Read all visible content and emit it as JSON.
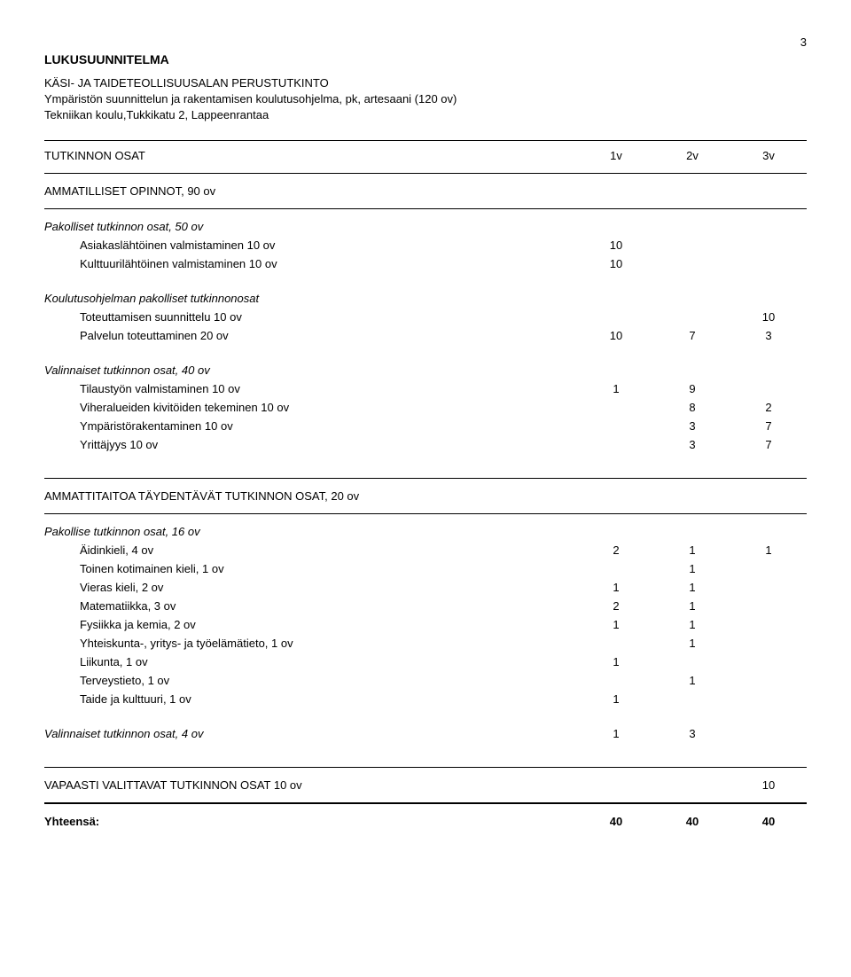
{
  "page_number": "3",
  "title": "LUKUSUUNNITELMA",
  "subtitle_lines": [
    "KÄSI- JA TAIDETEOLLISUUSALAN PERUSTUTKINTO",
    "Ympäristön suunnittelun ja rakentamisen koulutusohjelma, pk, artesaani (120 ov)",
    "Tekniikan koulu,Tukkikatu 2, Lappeenrantaa"
  ],
  "columns_header": {
    "label": "TUTKINNON OSAT",
    "c1": "1v",
    "c2": "2v",
    "c3": "3v"
  },
  "s1": {
    "title": "AMMATILLISET OPINNOT, 90 ov",
    "g1": {
      "title": "Pakolliset tutkinnon osat, 50 ov",
      "r1": {
        "label": "Asiakaslähtöinen valmistaminen 10 ov",
        "c1": "10"
      },
      "r2": {
        "label": "Kulttuurilähtöinen valmistaminen 10 ov",
        "c1": "10"
      }
    },
    "g2": {
      "title": "Koulutusohjelman pakolliset tutkinnonosat",
      "r1": {
        "label": "Toteuttamisen suunnittelu 10 ov",
        "c3": "10"
      },
      "r2": {
        "label": "Palvelun toteuttaminen 20 ov",
        "c1": "10",
        "c2": "7",
        "c3": "3"
      }
    },
    "g3": {
      "title": "Valinnaiset tutkinnon osat, 40 ov",
      "r1": {
        "label": "Tilaustyön valmistaminen 10 ov",
        "c1": "1",
        "c2": "9"
      },
      "r2": {
        "label": "Viheralueiden kivitöiden tekeminen 10 ov",
        "c2": "8",
        "c3": "2"
      },
      "r3": {
        "label": "Ympäristörakentaminen 10 ov",
        "c2": "3",
        "c3": "7"
      },
      "r4": {
        "label": "Yrittäjyys 10 ov",
        "c2": "3",
        "c3": "7"
      }
    }
  },
  "s2": {
    "title": "AMMATTITAITOA TÄYDENTÄVÄT TUTKINNON OSAT, 20 ov",
    "g1": {
      "title": "Pakollise tutkinnon osat, 16 ov",
      "r1": {
        "label": "Äidinkieli, 4 ov",
        "c1": "2",
        "c2": "1",
        "c3": "1"
      },
      "r2": {
        "label": "Toinen kotimainen kieli, 1 ov",
        "c2": "1"
      },
      "r3": {
        "label": "Vieras kieli, 2 ov",
        "c1": "1",
        "c2": "1"
      },
      "r4": {
        "label": "Matematiikka, 3 ov",
        "c1": "2",
        "c2": "1"
      },
      "r5": {
        "label": "Fysiikka ja kemia, 2 ov",
        "c1": "1",
        "c2": "1"
      },
      "r6": {
        "label": "Yhteiskunta-, yritys- ja työelämätieto, 1 ov",
        "c2": "1"
      },
      "r7": {
        "label": "Liikunta, 1 ov",
        "c1": "1"
      },
      "r8": {
        "label": "Terveystieto, 1 ov",
        "c2": "1"
      },
      "r9": {
        "label": "Taide ja kulttuuri, 1 ov",
        "c1": "1"
      }
    },
    "g2": {
      "title": "Valinnaiset tutkinnon osat,  4 ov",
      "c1": "1",
      "c2": "3"
    }
  },
  "s3": {
    "title": "VAPAASTI VALITTAVAT TUTKINNON OSAT 10 ov",
    "c3": "10"
  },
  "total": {
    "label": "Yhteensä:",
    "c1": "40",
    "c2": "40",
    "c3": "40"
  }
}
